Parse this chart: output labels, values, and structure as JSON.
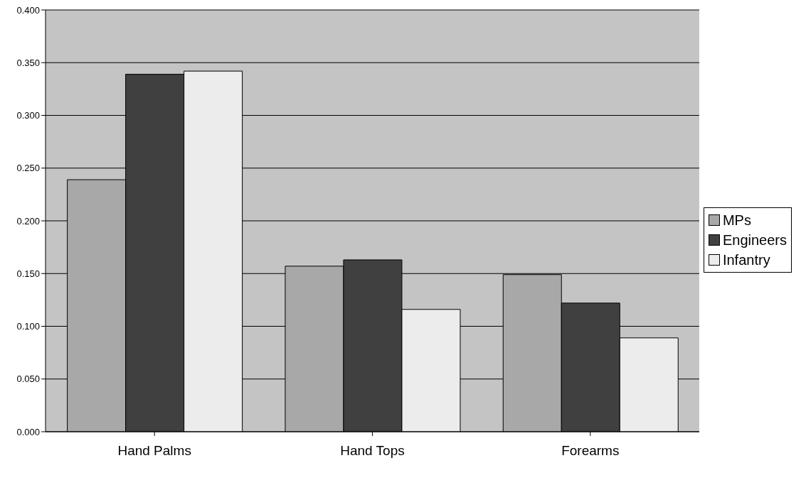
{
  "chart_data": {
    "type": "bar",
    "categories": [
      "Hand Palms",
      "Hand Tops",
      "Forearms"
    ],
    "series": [
      {
        "name": "MPs",
        "color": "#a8a8a8",
        "values": [
          0.239,
          0.157,
          0.149
        ]
      },
      {
        "name": "Engineers",
        "color": "#404040",
        "values": [
          0.339,
          0.163,
          0.122
        ]
      },
      {
        "name": "Infantry",
        "color": "#ececec",
        "values": [
          0.342,
          0.116,
          0.089
        ]
      }
    ],
    "ylim": [
      0,
      0.4
    ],
    "yticks": [
      {
        "value": 0,
        "label": "0.000"
      },
      {
        "value": 0.05,
        "label": "0.050"
      },
      {
        "value": 0.1,
        "label": "0.100"
      },
      {
        "value": 0.15,
        "label": "0.150"
      },
      {
        "value": 0.2,
        "label": "0.200"
      },
      {
        "value": 0.25,
        "label": "0.250"
      },
      {
        "value": 0.3,
        "label": "0.300"
      },
      {
        "value": 0.35,
        "label": "0.350"
      },
      {
        "value": 0.4,
        "label": "0.400"
      }
    ],
    "grid": "y",
    "legend": "right"
  }
}
